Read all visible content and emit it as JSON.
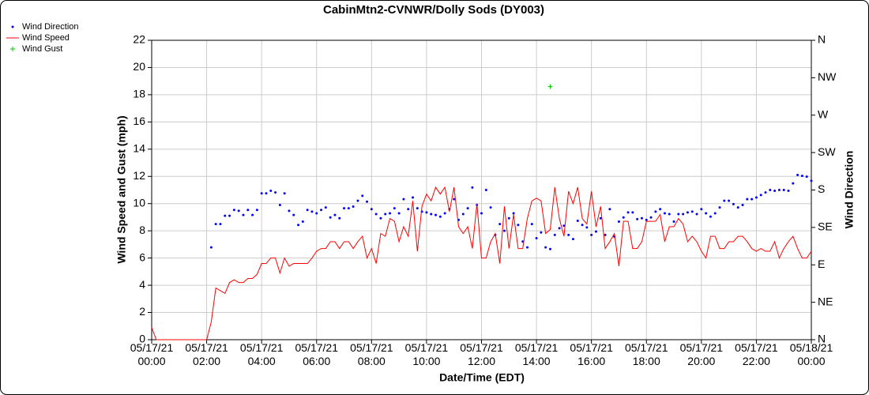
{
  "chart_data": {
    "type": "line",
    "title": "CabinMtn2-CVNWR/Dolly Sods (DY003)",
    "x_label": "Date/Time (EDT)",
    "y_label": "Wind Speed and Gust (mph)",
    "y2_label": "Wind Direction",
    "xlim": [
      0,
      1440
    ],
    "xticks": [
      {
        "value": 0,
        "label": "05/17/21\n00:00"
      },
      {
        "value": 120,
        "label": "05/17/21\n02:00"
      },
      {
        "value": 240,
        "label": "05/17/21\n04:00"
      },
      {
        "value": 360,
        "label": "05/17/21\n06:00"
      },
      {
        "value": 480,
        "label": "05/17/21\n08:00"
      },
      {
        "value": 600,
        "label": "05/17/21\n10:00"
      },
      {
        "value": 720,
        "label": "05/17/21\n12:00"
      },
      {
        "value": 840,
        "label": "05/17/21\n14:00"
      },
      {
        "value": 960,
        "label": "05/17/21\n16:00"
      },
      {
        "value": 1080,
        "label": "05/17/21\n18:00"
      },
      {
        "value": 1200,
        "label": "05/17/21\n20:00"
      },
      {
        "value": 1320,
        "label": "05/17/21\n22:00"
      },
      {
        "value": 1440,
        "label": "05/18/21\n00:00"
      }
    ],
    "ylim": [
      0,
      22
    ],
    "yticks": [
      0,
      2,
      4,
      6,
      8,
      10,
      12,
      14,
      16,
      18,
      20,
      22
    ],
    "y2lim": [
      0,
      360
    ],
    "y2ticks": [
      {
        "value": 0,
        "label": "N"
      },
      {
        "value": 45,
        "label": "NE"
      },
      {
        "value": 90,
        "label": "E"
      },
      {
        "value": 135,
        "label": "SE"
      },
      {
        "value": 180,
        "label": "S"
      },
      {
        "value": 225,
        "label": "SW"
      },
      {
        "value": 270,
        "label": "W"
      },
      {
        "value": 315,
        "label": "NW"
      },
      {
        "value": 360,
        "label": "N"
      }
    ],
    "grid": true,
    "legend": "top-left",
    "series": [
      {
        "name": "Wind Direction",
        "color": "#0000ff",
        "marker": "dot",
        "axis": "y2",
        "x": [
          130,
          140,
          150,
          160,
          170,
          180,
          190,
          200,
          210,
          220,
          230,
          240,
          250,
          260,
          270,
          280,
          290,
          300,
          310,
          320,
          330,
          340,
          350,
          360,
          370,
          380,
          390,
          400,
          410,
          420,
          430,
          440,
          450,
          460,
          470,
          480,
          490,
          500,
          510,
          520,
          530,
          540,
          550,
          560,
          570,
          580,
          590,
          600,
          610,
          620,
          630,
          640,
          650,
          660,
          670,
          680,
          690,
          700,
          710,
          720,
          730,
          740,
          750,
          760,
          770,
          780,
          790,
          800,
          810,
          820,
          830,
          840,
          850,
          860,
          870,
          880,
          890,
          900,
          910,
          920,
          930,
          940,
          950,
          960,
          970,
          980,
          990,
          1000,
          1010,
          1020,
          1030,
          1040,
          1050,
          1060,
          1070,
          1080,
          1090,
          1100,
          1110,
          1120,
          1130,
          1140,
          1150,
          1160,
          1170,
          1180,
          1190,
          1200,
          1210,
          1220,
          1230,
          1240,
          1250,
          1260,
          1270,
          1280,
          1290,
          1300,
          1310,
          1320,
          1330,
          1340,
          1350,
          1360,
          1370,
          1380,
          1390,
          1400,
          1410,
          1420,
          1430,
          1440
        ],
        "values": [
          111,
          139,
          139,
          149,
          149,
          156,
          155,
          150,
          156,
          150,
          156,
          176,
          176,
          179,
          177,
          162,
          176,
          155,
          150,
          138,
          142,
          156,
          154,
          152,
          156,
          159,
          147,
          150,
          146,
          158,
          158,
          160,
          167,
          173,
          166,
          157,
          151,
          146,
          151,
          152,
          158,
          152,
          169,
          157,
          171,
          158,
          154,
          153,
          151,
          150,
          148,
          152,
          157,
          169,
          144,
          151,
          158,
          183,
          162,
          152,
          180,
          159,
          126,
          139,
          131,
          146,
          152,
          138,
          118,
          111,
          139,
          122,
          129,
          111,
          109,
          126,
          134,
          137,
          126,
          121,
          143,
          138,
          135,
          126,
          130,
          146,
          126,
          157,
          124,
          142,
          147,
          153,
          153,
          145,
          146,
          144,
          147,
          154,
          157,
          152,
          151,
          142,
          151,
          151,
          153,
          154,
          151,
          157,
          152,
          148,
          152,
          159,
          167,
          167,
          163,
          159,
          162,
          169,
          169,
          171,
          174,
          177,
          180,
          179,
          180,
          180,
          179,
          188,
          198,
          197,
          196,
          191
        ]
      },
      {
        "name": "Wind Speed",
        "color": "#ff0000",
        "marker": "line",
        "x": [
          0,
          10,
          120,
          130,
          140,
          150,
          160,
          170,
          180,
          190,
          200,
          210,
          220,
          230,
          240,
          250,
          260,
          270,
          280,
          290,
          300,
          310,
          320,
          330,
          340,
          350,
          360,
          370,
          380,
          390,
          400,
          410,
          420,
          430,
          440,
          450,
          460,
          470,
          480,
          490,
          500,
          510,
          520,
          530,
          540,
          550,
          560,
          570,
          580,
          590,
          600,
          610,
          620,
          630,
          640,
          650,
          660,
          670,
          680,
          690,
          700,
          710,
          720,
          730,
          740,
          750,
          760,
          770,
          780,
          790,
          800,
          810,
          820,
          830,
          840,
          850,
          860,
          870,
          880,
          890,
          900,
          910,
          920,
          930,
          940,
          950,
          960,
          970,
          980,
          990,
          1000,
          1010,
          1020,
          1030,
          1040,
          1050,
          1060,
          1070,
          1080,
          1090,
          1100,
          1110,
          1120,
          1130,
          1140,
          1150,
          1160,
          1170,
          1180,
          1190,
          1200,
          1210,
          1220,
          1230,
          1240,
          1250,
          1260,
          1270,
          1280,
          1290,
          1300,
          1310,
          1320,
          1330,
          1340,
          1350,
          1360,
          1370,
          1380,
          1390,
          1400,
          1410,
          1420,
          1430,
          1440
        ],
        "values": [
          0.9,
          0,
          0,
          1.3,
          3.8,
          3.6,
          3.4,
          4.2,
          4.4,
          4.2,
          4.2,
          4.5,
          4.5,
          4.8,
          5.6,
          5.6,
          6.0,
          6.0,
          4.9,
          6.0,
          5.4,
          5.6,
          5.6,
          5.6,
          5.6,
          6.0,
          6.5,
          6.7,
          6.7,
          7.2,
          7.2,
          6.7,
          7.2,
          7.2,
          6.7,
          7.2,
          7.6,
          6.0,
          6.7,
          5.6,
          7.8,
          7.6,
          8.9,
          8.7,
          7.2,
          8.3,
          7.6,
          10.2,
          6.5,
          9.8,
          10.7,
          10.2,
          11.2,
          10.7,
          11.2,
          9.4,
          11.2,
          8.3,
          7.8,
          8.3,
          6.7,
          10.0,
          6.0,
          6.0,
          7.2,
          7.8,
          5.6,
          9.8,
          6.7,
          9.2,
          6.7,
          6.7,
          8.9,
          10.2,
          10.4,
          10.2,
          7.8,
          8.1,
          11.2,
          8.9,
          7.6,
          10.9,
          10.0,
          11.2,
          8.9,
          8.5,
          10.9,
          8.3,
          9.8,
          6.7,
          7.2,
          7.8,
          5.4,
          8.7,
          8.7,
          6.7,
          6.7,
          7.2,
          8.7,
          8.7,
          8.7,
          9.2,
          7.2,
          8.3,
          8.3,
          8.9,
          8.5,
          7.2,
          7.6,
          7.2,
          6.5,
          6.0,
          7.6,
          7.6,
          6.7,
          6.7,
          7.2,
          7.2,
          7.6,
          7.6,
          7.2,
          6.7,
          6.5,
          6.7,
          6.5,
          6.5,
          7.2,
          6.0,
          6.7,
          7.2,
          7.6,
          6.7,
          6.0,
          6.0,
          6.5
        ]
      },
      {
        "name": "Wind Gust",
        "color": "#00cc00",
        "marker": "plus",
        "x": [
          870
        ],
        "values": [
          18.6
        ]
      }
    ]
  }
}
